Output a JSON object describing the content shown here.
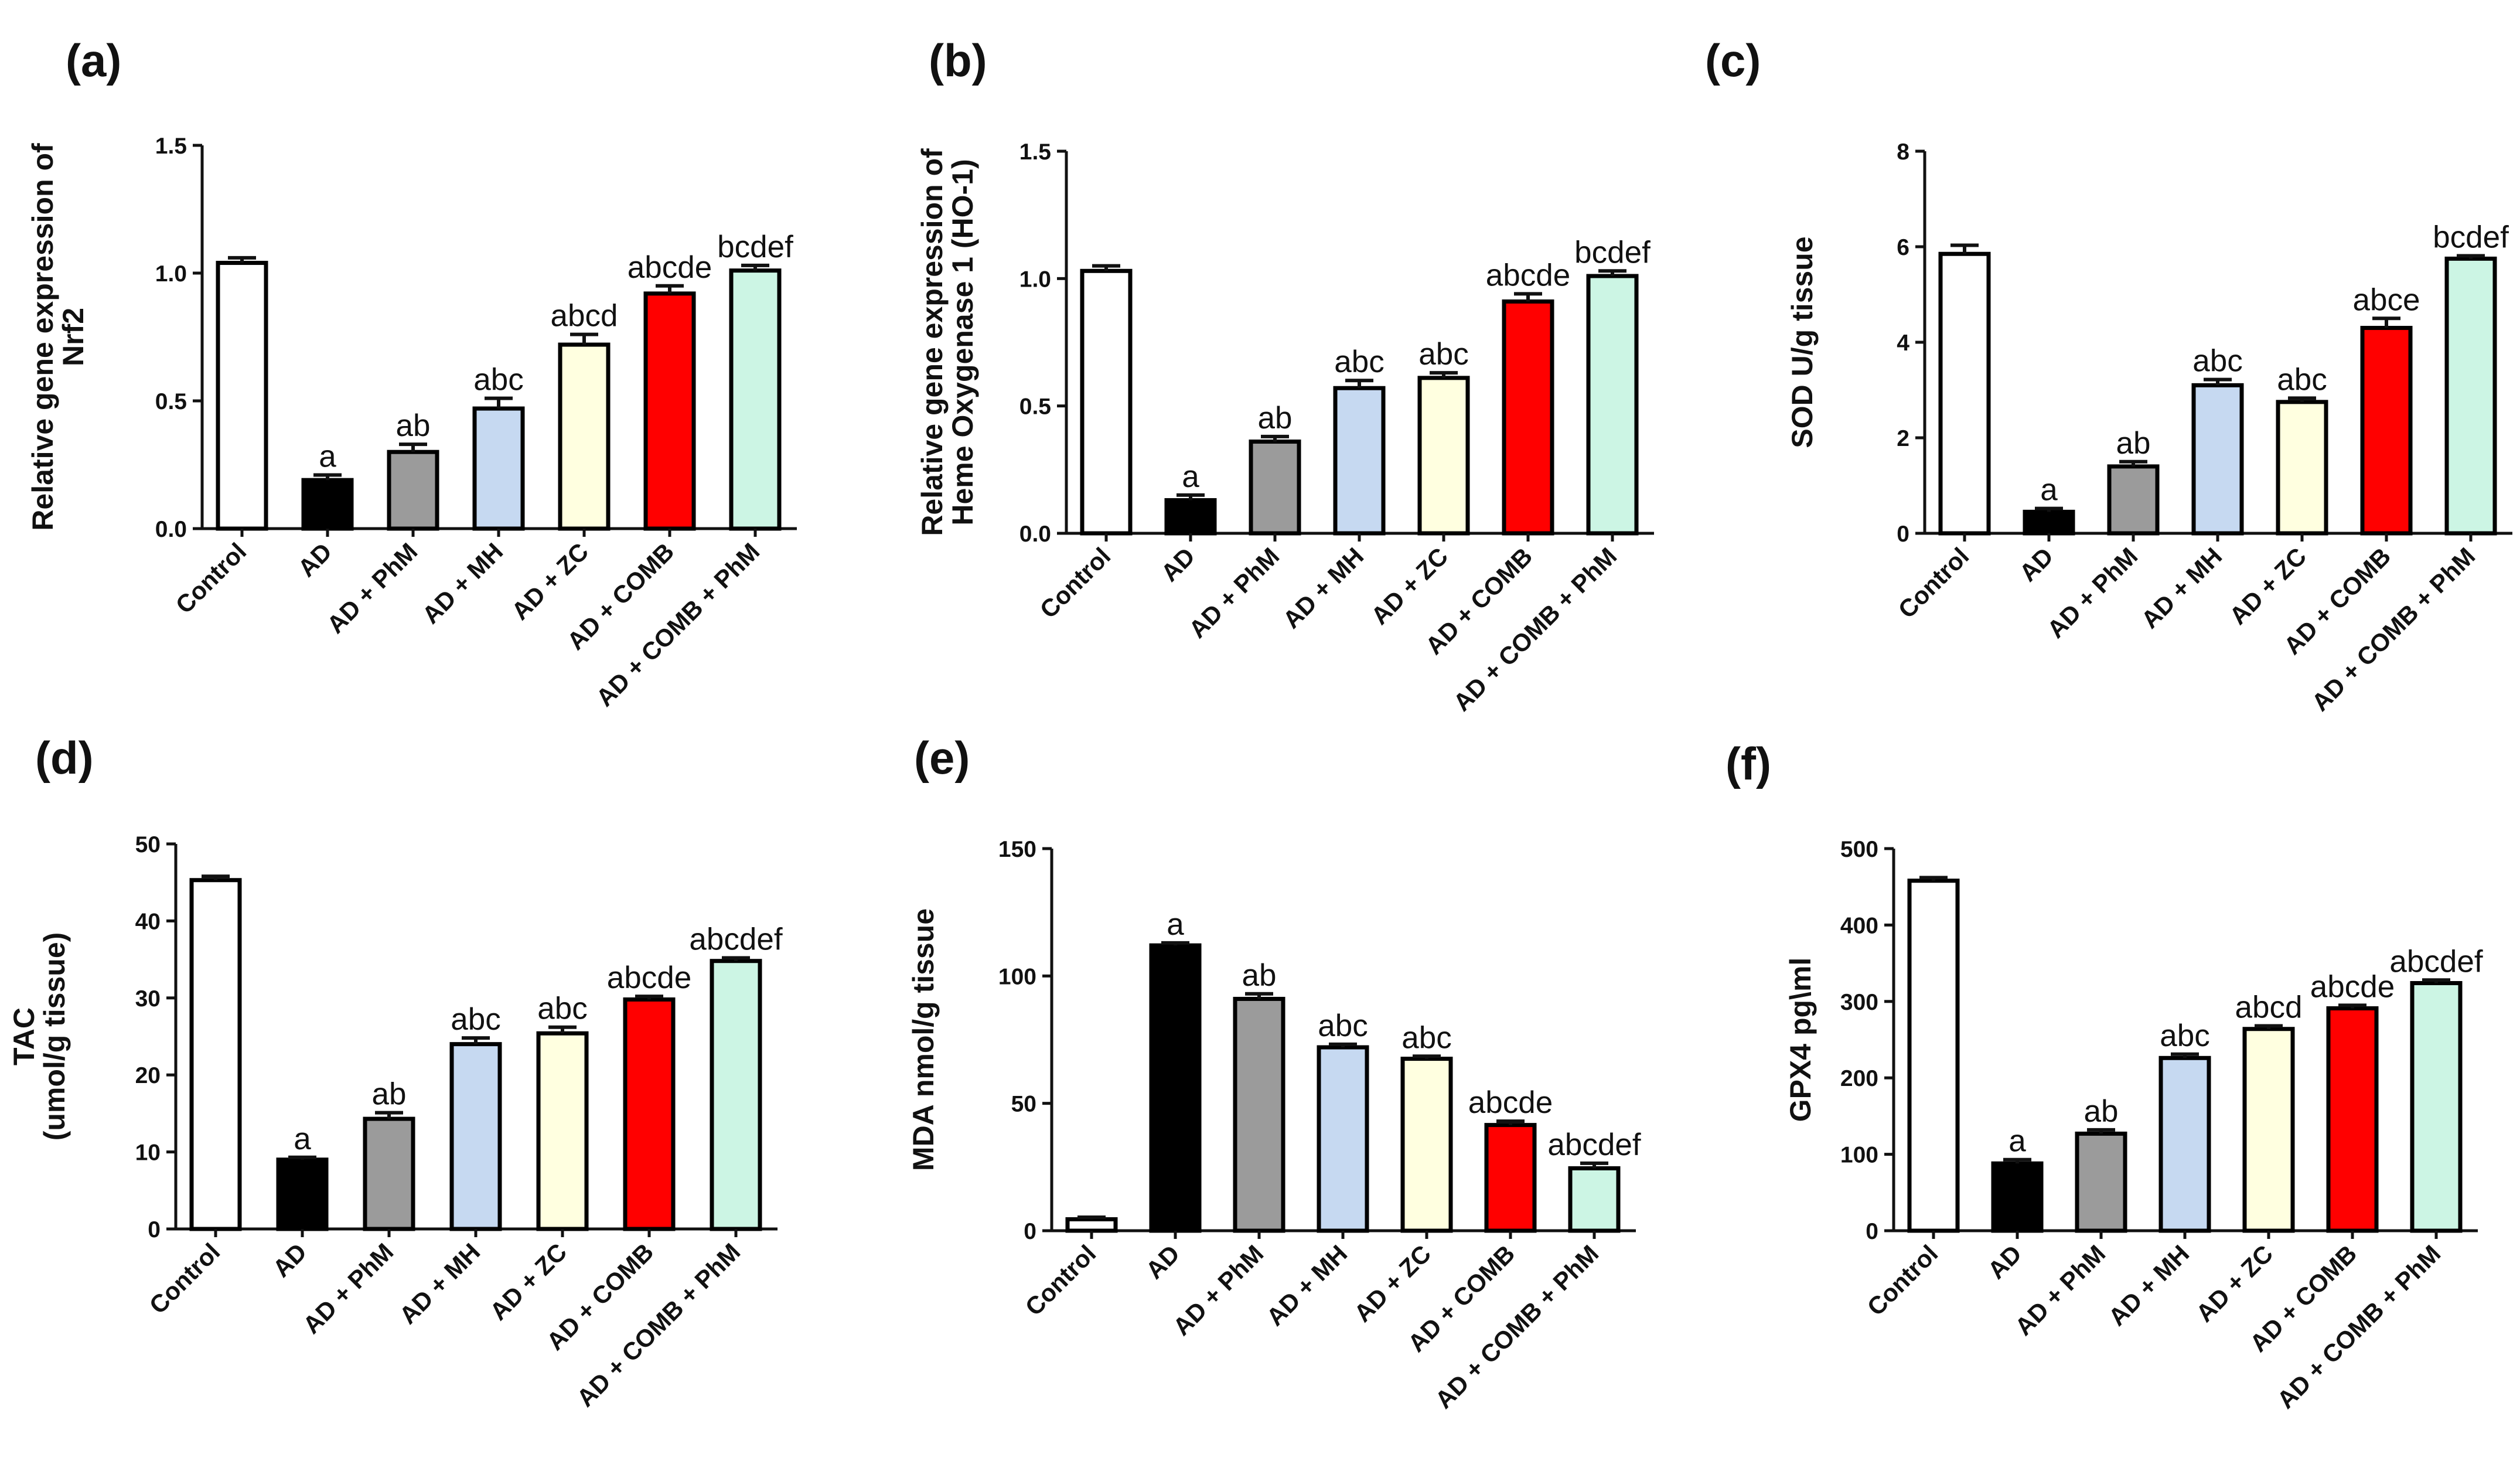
{
  "chart_data": [
    {
      "type": "bar",
      "panel": "(a)",
      "ylabel": [
        "Relative gene expression of",
        "Nrf2"
      ],
      "categories": [
        "Control",
        "AD",
        "AD + PhM",
        "AD + MH",
        "AD + ZC",
        "AD + COMB",
        "AD + COMB + PhM"
      ],
      "values": [
        1.04,
        0.19,
        0.3,
        0.47,
        0.72,
        0.92,
        1.01
      ],
      "errors": [
        0.02,
        0.02,
        0.03,
        0.04,
        0.04,
        0.03,
        0.02
      ],
      "annotations": [
        "",
        "a",
        "ab",
        "abc",
        "abcd",
        "abcde",
        "bcdef"
      ],
      "ylim": [
        0,
        1.5
      ],
      "yticks": [
        0,
        0.5,
        1.0,
        1.5
      ],
      "ytick_labels": [
        "0.0",
        "0.5",
        "1.0",
        "1.5"
      ]
    },
    {
      "type": "bar",
      "panel": "(b)",
      "ylabel": [
        "Relative gene expression of",
        "Heme Oxygenase 1 (HO-1)"
      ],
      "categories": [
        "Control",
        "AD",
        "AD + PhM",
        "AD + MH",
        "AD + ZC",
        "AD + COMB",
        "AD + COMB + PhM"
      ],
      "values": [
        1.03,
        0.13,
        0.36,
        0.57,
        0.61,
        0.91,
        1.01
      ],
      "errors": [
        0.02,
        0.02,
        0.02,
        0.03,
        0.02,
        0.03,
        0.02
      ],
      "annotations": [
        "",
        "a",
        "ab",
        "abc",
        "abc",
        "abcde",
        "bcdef"
      ],
      "ylim": [
        0,
        1.5
      ],
      "yticks": [
        0,
        0.5,
        1.0,
        1.5
      ],
      "ytick_labels": [
        "0.0",
        "0.5",
        "1.0",
        "1.5"
      ]
    },
    {
      "type": "bar",
      "panel": "(c)",
      "ylabel": [
        "SOD U/g tissue"
      ],
      "categories": [
        "Control",
        "AD",
        "AD + PhM",
        "AD + MH",
        "AD + ZC",
        "AD + COMB",
        "AD + COMB + PhM"
      ],
      "values": [
        5.85,
        0.45,
        1.4,
        3.1,
        2.75,
        4.3,
        5.75
      ],
      "errors": [
        0.18,
        0.07,
        0.1,
        0.12,
        0.08,
        0.2,
        0.06
      ],
      "annotations": [
        "",
        "a",
        "ab",
        "abc",
        "abc",
        "abce",
        "bcdef"
      ],
      "ylim": [
        0,
        8
      ],
      "yticks": [
        0,
        2,
        4,
        6,
        8
      ],
      "ytick_labels": [
        "0",
        "2",
        "4",
        "6",
        "8"
      ]
    },
    {
      "type": "bar",
      "panel": "(d)",
      "ylabel": [
        "TAC",
        "(umol/g tissue)"
      ],
      "categories": [
        "Control",
        "AD",
        "AD + PhM",
        "AD + MH",
        "AD + ZC",
        "AD + COMB",
        "AD + COMB + PhM"
      ],
      "values": [
        45.3,
        9.0,
        14.3,
        24.0,
        25.4,
        29.8,
        34.8
      ],
      "errors": [
        0.5,
        0.3,
        0.8,
        0.8,
        0.8,
        0.4,
        0.4
      ],
      "annotations": [
        "",
        "a",
        "ab",
        "abc",
        "abc",
        "abcde",
        "abcdef"
      ],
      "ylim": [
        0,
        50
      ],
      "yticks": [
        0,
        10,
        20,
        30,
        40,
        50
      ],
      "ytick_labels": [
        "0",
        "10",
        "20",
        "30",
        "40",
        "50"
      ]
    },
    {
      "type": "bar",
      "panel": "(e)",
      "ylabel": [
        "MDA nmol/g tissue"
      ],
      "categories": [
        "Control",
        "AD",
        "AD + PhM",
        "AD + MH",
        "AD + ZC",
        "AD + COMB",
        "AD + COMB + PhM"
      ],
      "values": [
        4.5,
        112.0,
        91.0,
        72.0,
        67.5,
        41.5,
        24.5
      ],
      "errors": [
        0.8,
        1.0,
        2.0,
        1.2,
        1.0,
        1.5,
        2.0
      ],
      "annotations": [
        "",
        "a",
        "ab",
        "abc",
        "abc",
        "abcde",
        "abcdef"
      ],
      "ylim": [
        0,
        150
      ],
      "yticks": [
        0,
        50,
        100,
        150
      ],
      "ytick_labels": [
        "0",
        "50",
        "100",
        "150"
      ]
    },
    {
      "type": "bar",
      "panel": "(f)",
      "ylabel": [
        "GPX4 pg\\ml"
      ],
      "categories": [
        "Control",
        "AD",
        "AD + PhM",
        "AD + MH",
        "AD + ZC",
        "AD + COMB",
        "AD + COMB + PhM"
      ],
      "values": [
        458,
        88,
        127,
        226,
        264,
        291,
        324
      ],
      "errors": [
        4,
        5,
        5,
        5,
        4,
        4,
        4
      ],
      "annotations": [
        "",
        "a",
        "ab",
        "abc",
        "abcd",
        "abcde",
        "abcdef"
      ],
      "ylim": [
        0,
        500
      ],
      "yticks": [
        0,
        100,
        200,
        300,
        400,
        500
      ],
      "ytick_labels": [
        "0",
        "100",
        "200",
        "300",
        "400",
        "500"
      ]
    }
  ],
  "bar_colors": [
    "#ffffff",
    "#000000",
    "#9b9b9b",
    "#c6d9f1",
    "#ffffe0",
    "#ff0000",
    "#ccf5e4"
  ],
  "edge_color": "#000000"
}
